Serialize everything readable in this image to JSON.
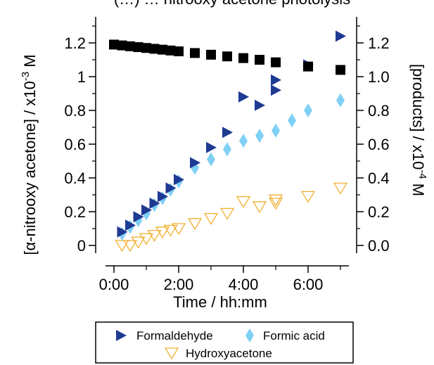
{
  "chart_data": {
    "type": "scatter",
    "title": "(…) … nitrooxy acetone photolysis",
    "xlabel": "Time / hh:mm",
    "ylabel_left": "[α-nitrooxy acetone] / x10",
    "ylabel_left_exp": "-3",
    "ylabel_left_unit": " M",
    "ylabel_right": "[products] / x10",
    "ylabel_right_exp": "-4",
    "ylabel_right_unit": " M",
    "xlim": [
      0,
      7
    ],
    "ylim_left": [
      0,
      1.3
    ],
    "ylim_right": [
      0,
      1.3
    ],
    "x_ticks": [
      {
        "value": 0,
        "label": "0:00"
      },
      {
        "value": 2,
        "label": "2:00"
      },
      {
        "value": 4,
        "label": "4:00"
      },
      {
        "value": 6,
        "label": "6:00"
      }
    ],
    "x_minor_ticks": [
      1,
      3,
      5,
      7
    ],
    "y_left_ticks": [
      {
        "value": 0,
        "label": "0"
      },
      {
        "value": 0.2,
        "label": "0.2"
      },
      {
        "value": 0.4,
        "label": "0.4"
      },
      {
        "value": 0.6,
        "label": "0.6"
      },
      {
        "value": 0.8,
        "label": "0.8"
      },
      {
        "value": 1.0,
        "label": "1"
      },
      {
        "value": 1.2,
        "label": "1.2"
      }
    ],
    "y_right_ticks": [
      {
        "value": 0,
        "label": "0.0"
      },
      {
        "value": 0.2,
        "label": "0.2"
      },
      {
        "value": 0.4,
        "label": "0.4"
      },
      {
        "value": 0.6,
        "label": "0.6"
      },
      {
        "value": 0.8,
        "label": "0.8"
      },
      {
        "value": 1.0,
        "label": "1.0"
      },
      {
        "value": 1.2,
        "label": "1.2"
      }
    ],
    "legend_placement": "bottom",
    "series": [
      {
        "name": "α-nitrooxy acetone",
        "axis": "left",
        "marker": "square",
        "color": "#000000",
        "x": [
          0,
          0.25,
          0.5,
          0.75,
          1.0,
          1.25,
          1.5,
          1.75,
          2.0,
          2.5,
          3.0,
          3.5,
          4.0,
          4.5,
          5.0,
          6.0,
          7.0
        ],
        "y": [
          1.19,
          1.185,
          1.18,
          1.175,
          1.17,
          1.165,
          1.16,
          1.155,
          1.15,
          1.14,
          1.13,
          1.12,
          1.11,
          1.1,
          1.085,
          1.06,
          1.04
        ]
      },
      {
        "name": "Formaldehyde",
        "axis": "right",
        "marker": "triangle-right",
        "color": "#1f3a93",
        "x": [
          0.25,
          0.5,
          0.75,
          1.0,
          1.25,
          1.5,
          1.75,
          2.0,
          2.5,
          3.0,
          3.5,
          4.0,
          4.5,
          5.0,
          5.0,
          6.0,
          7.0
        ],
        "y": [
          0.08,
          0.12,
          0.17,
          0.21,
          0.25,
          0.29,
          0.34,
          0.39,
          0.49,
          0.58,
          0.67,
          0.88,
          0.83,
          0.92,
          0.98,
          1.07,
          1.24
        ]
      },
      {
        "name": "Formic acid",
        "axis": "right",
        "marker": "diamond",
        "color": "#7fd0f5",
        "x": [
          0.25,
          0.5,
          0.75,
          1.0,
          1.25,
          1.5,
          1.75,
          2.0,
          2.5,
          3.0,
          3.5,
          4.0,
          4.5,
          5.0,
          5.5,
          6.0,
          7.0
        ],
        "y": [
          0.07,
          0.11,
          0.15,
          0.19,
          0.24,
          0.28,
          0.33,
          0.38,
          0.46,
          0.51,
          0.57,
          0.62,
          0.65,
          0.68,
          0.74,
          0.8,
          0.86
        ]
      },
      {
        "name": "Hydroxyacetone",
        "axis": "right",
        "marker": "triangle-down",
        "color": "#f0b030",
        "x": [
          0.25,
          0.5,
          0.75,
          1.0,
          1.25,
          1.5,
          1.75,
          2.0,
          2.5,
          3.0,
          3.5,
          4.0,
          4.5,
          5.0,
          5.0,
          6.0,
          7.0
        ],
        "y": [
          0.0,
          0.0,
          0.02,
          0.04,
          0.06,
          0.08,
          0.09,
          0.1,
          0.13,
          0.16,
          0.19,
          0.26,
          0.23,
          0.25,
          0.27,
          0.29,
          0.34
        ]
      }
    ]
  }
}
